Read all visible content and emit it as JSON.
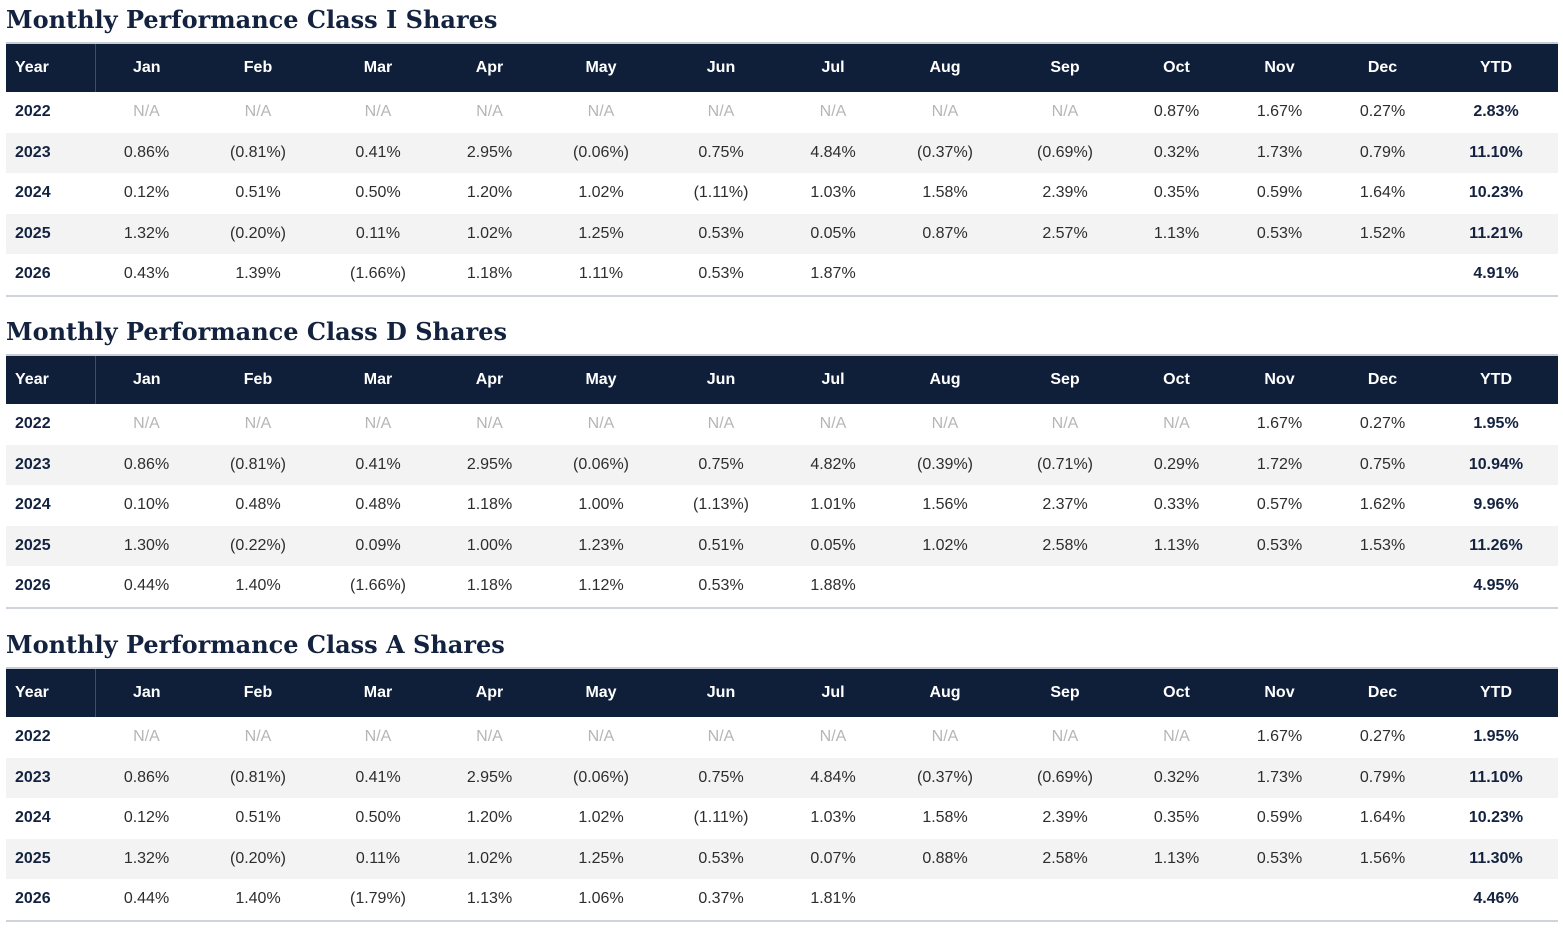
{
  "columns": [
    "Year",
    "Jan",
    "Feb",
    "Mar",
    "Apr",
    "May",
    "Jun",
    "Jul",
    "Aug",
    "Sep",
    "Oct",
    "Nov",
    "Dec",
    "YTD"
  ],
  "sections": [
    {
      "title": "Monthly Performance Class I Shares",
      "rows": [
        [
          "2022",
          "N/A",
          "N/A",
          "N/A",
          "N/A",
          "N/A",
          "N/A",
          "N/A",
          "N/A",
          "N/A",
          "0.87%",
          "1.67%",
          "0.27%",
          "2.83%"
        ],
        [
          "2023",
          "0.86%",
          "(0.81%)",
          "0.41%",
          "2.95%",
          "(0.06%)",
          "0.75%",
          "4.84%",
          "(0.37%)",
          "(0.69%)",
          "0.32%",
          "1.73%",
          "0.79%",
          "11.10%"
        ],
        [
          "2024",
          "0.12%",
          "0.51%",
          "0.50%",
          "1.20%",
          "1.02%",
          "(1.11%)",
          "1.03%",
          "1.58%",
          "2.39%",
          "0.35%",
          "0.59%",
          "1.64%",
          "10.23%"
        ],
        [
          "2025",
          "1.32%",
          "(0.20%)",
          "0.11%",
          "1.02%",
          "1.25%",
          "0.53%",
          "0.05%",
          "0.87%",
          "2.57%",
          "1.13%",
          "0.53%",
          "1.52%",
          "11.21%"
        ],
        [
          "2026",
          "0.43%",
          "1.39%",
          "(1.66%)",
          "1.18%",
          "1.11%",
          "0.53%",
          "1.87%",
          "",
          "",
          "",
          "",
          "",
          "4.91%"
        ]
      ]
    },
    {
      "title": "Monthly Performance Class D Shares",
      "rows": [
        [
          "2022",
          "N/A",
          "N/A",
          "N/A",
          "N/A",
          "N/A",
          "N/A",
          "N/A",
          "N/A",
          "N/A",
          "N/A",
          "1.67%",
          "0.27%",
          "1.95%"
        ],
        [
          "2023",
          "0.86%",
          "(0.81%)",
          "0.41%",
          "2.95%",
          "(0.06%)",
          "0.75%",
          "4.82%",
          "(0.39%)",
          "(0.71%)",
          "0.29%",
          "1.72%",
          "0.75%",
          "10.94%"
        ],
        [
          "2024",
          "0.10%",
          "0.48%",
          "0.48%",
          "1.18%",
          "1.00%",
          "(1.13%)",
          "1.01%",
          "1.56%",
          "2.37%",
          "0.33%",
          "0.57%",
          "1.62%",
          "9.96%"
        ],
        [
          "2025",
          "1.30%",
          "(0.22%)",
          "0.09%",
          "1.00%",
          "1.23%",
          "0.51%",
          "0.05%",
          "1.02%",
          "2.58%",
          "1.13%",
          "0.53%",
          "1.53%",
          "11.26%"
        ],
        [
          "2026",
          "0.44%",
          "1.40%",
          "(1.66%)",
          "1.18%",
          "1.12%",
          "0.53%",
          "1.88%",
          "",
          "",
          "",
          "",
          "",
          "4.95%"
        ]
      ]
    },
    {
      "title": "Monthly Performance Class A Shares",
      "rows": [
        [
          "2022",
          "N/A",
          "N/A",
          "N/A",
          "N/A",
          "N/A",
          "N/A",
          "N/A",
          "N/A",
          "N/A",
          "N/A",
          "1.67%",
          "0.27%",
          "1.95%"
        ],
        [
          "2023",
          "0.86%",
          "(0.81%)",
          "0.41%",
          "2.95%",
          "(0.06%)",
          "0.75%",
          "4.84%",
          "(0.37%)",
          "(0.69%)",
          "0.32%",
          "1.73%",
          "0.79%",
          "11.10%"
        ],
        [
          "2024",
          "0.12%",
          "0.51%",
          "0.50%",
          "1.20%",
          "1.02%",
          "(1.11%)",
          "1.03%",
          "1.58%",
          "2.39%",
          "0.35%",
          "0.59%",
          "1.64%",
          "10.23%"
        ],
        [
          "2025",
          "1.32%",
          "(0.20%)",
          "0.11%",
          "1.02%",
          "1.25%",
          "0.53%",
          "0.07%",
          "0.88%",
          "2.58%",
          "1.13%",
          "0.53%",
          "1.56%",
          "11.30%"
        ],
        [
          "2026",
          "0.44%",
          "1.40%",
          "(1.79%)",
          "1.13%",
          "1.06%",
          "0.37%",
          "1.81%",
          "",
          "",
          "",
          "",
          "",
          "4.46%"
        ]
      ]
    }
  ]
}
